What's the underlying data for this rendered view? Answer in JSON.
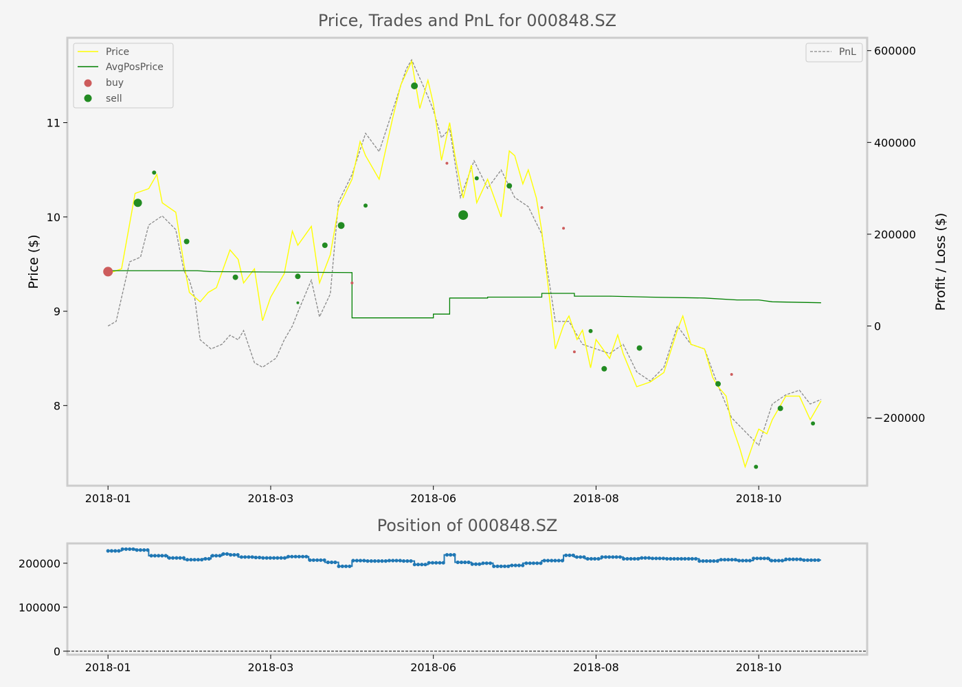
{
  "chart_data": [
    {
      "type": "line",
      "title": "Price, Trades and PnL for 000848.SZ",
      "xlabel": "",
      "ylabel": "Price ($)",
      "y2label": "Profit / Loss ($)",
      "xticks": [
        "2018-01",
        "2018-03",
        "2018-06",
        "2018-08",
        "2018-10"
      ],
      "xtick_values": [
        0,
        60,
        120,
        180,
        240
      ],
      "xlim": [
        -15,
        280
      ],
      "ylim": [
        7.15,
        11.9
      ],
      "yticks": [
        8,
        9,
        10,
        11
      ],
      "y2lim": [
        -348000,
        628000
      ],
      "y2ticks": [
        -200000,
        0,
        200000,
        400000,
        600000
      ],
      "y2tick_labels": [
        "−200000",
        "0",
        "200000",
        "400000",
        "600000"
      ],
      "legend_left": [
        "Price",
        "AvgPosPrice",
        "buy",
        "sell"
      ],
      "legend_right": [
        "PnL"
      ],
      "legend_placement": [
        "top-left",
        "top-right"
      ],
      "colors": {
        "price": "#ffff00",
        "avg": "#008000",
        "pnl": "#888888",
        "buy": "#cd5c5c",
        "sell": "#228b22",
        "axis_frame": "#cccccc"
      },
      "series": [
        {
          "name": "Price",
          "x": [
            0,
            5,
            10,
            15,
            18,
            20,
            25,
            28,
            30,
            34,
            37,
            40,
            45,
            48,
            50,
            54,
            57,
            60,
            65,
            68,
            70,
            75,
            78,
            82,
            85,
            90,
            93,
            95,
            100,
            105,
            108,
            112,
            115,
            118,
            120,
            123,
            126,
            128,
            131,
            134,
            136,
            140,
            145,
            148,
            150,
            153,
            155,
            158,
            160,
            163,
            165,
            168,
            170,
            173,
            175,
            178,
            180,
            185,
            188,
            190,
            195,
            200,
            205,
            210,
            212,
            215,
            220,
            223,
            225,
            228,
            230,
            233,
            235,
            238,
            240,
            243,
            245,
            250,
            255,
            259,
            263
          ],
          "y": [
            9.4,
            9.45,
            10.25,
            10.3,
            10.45,
            10.15,
            10.05,
            9.5,
            9.2,
            9.1,
            9.2,
            9.25,
            9.65,
            9.55,
            9.3,
            9.45,
            8.9,
            9.15,
            9.4,
            9.85,
            9.7,
            9.9,
            9.3,
            9.6,
            10.1,
            10.4,
            10.8,
            10.65,
            10.4,
            11.05,
            11.4,
            11.65,
            11.15,
            11.45,
            11.2,
            10.6,
            11.0,
            10.65,
            10.2,
            10.55,
            10.15,
            10.4,
            10.0,
            10.7,
            10.65,
            10.35,
            10.5,
            10.2,
            9.85,
            9.1,
            8.6,
            8.85,
            8.95,
            8.7,
            8.8,
            8.4,
            8.7,
            8.5,
            8.75,
            8.55,
            8.2,
            8.25,
            8.35,
            8.8,
            8.95,
            8.65,
            8.6,
            8.3,
            8.2,
            8.1,
            7.8,
            7.55,
            7.35,
            7.6,
            7.75,
            7.7,
            7.85,
            8.1,
            8.1,
            7.85,
            8.05
          ]
        },
        {
          "name": "AvgPosPrice",
          "x": [
            0,
            33,
            38,
            90,
            90,
            120,
            120,
            126,
            126,
            140,
            140,
            160,
            160,
            172,
            172,
            185,
            200,
            220,
            232,
            240,
            245,
            263
          ],
          "y": [
            9.43,
            9.43,
            9.42,
            9.41,
            8.93,
            8.93,
            8.97,
            8.97,
            9.14,
            9.14,
            9.15,
            9.15,
            9.19,
            9.19,
            9.16,
            9.16,
            9.15,
            9.14,
            9.12,
            9.12,
            9.1,
            9.09
          ]
        },
        {
          "name": "PnL",
          "x": [
            0,
            3,
            8,
            12,
            15,
            20,
            25,
            28,
            30,
            32,
            34,
            38,
            42,
            45,
            48,
            50,
            54,
            57,
            62,
            65,
            68,
            70,
            75,
            78,
            82,
            85,
            90,
            95,
            100,
            105,
            110,
            112,
            118,
            120,
            123,
            126,
            130,
            135,
            140,
            145,
            150,
            155,
            160,
            165,
            170,
            175,
            180,
            185,
            190,
            195,
            200,
            205,
            210,
            215,
            220,
            225,
            230,
            235,
            240,
            245,
            250,
            255,
            259,
            263
          ],
          "y": [
            0,
            10000,
            140000,
            150000,
            220000,
            240000,
            210000,
            120000,
            100000,
            60000,
            -30000,
            -50000,
            -40000,
            -20000,
            -30000,
            -10000,
            -80000,
            -90000,
            -70000,
            -30000,
            0,
            30000,
            100000,
            20000,
            70000,
            270000,
            330000,
            420000,
            380000,
            470000,
            560000,
            580000,
            500000,
            470000,
            410000,
            430000,
            280000,
            360000,
            300000,
            340000,
            280000,
            260000,
            200000,
            10000,
            10000,
            -40000,
            -50000,
            -60000,
            -40000,
            -100000,
            -120000,
            -90000,
            0,
            -40000,
            -50000,
            -130000,
            -200000,
            -230000,
            -260000,
            -170000,
            -150000,
            -140000,
            -170000,
            -160000
          ]
        }
      ],
      "buy": [
        {
          "x": 0,
          "y": 9.42,
          "size": 7
        },
        {
          "x": 90,
          "y": 9.3,
          "size": 2
        },
        {
          "x": 125,
          "y": 10.57,
          "size": 2
        },
        {
          "x": 160,
          "y": 10.1,
          "size": 2
        },
        {
          "x": 168,
          "y": 9.88,
          "size": 2
        },
        {
          "x": 172,
          "y": 8.57,
          "size": 2
        },
        {
          "x": 230,
          "y": 8.33,
          "size": 2
        }
      ],
      "sell": [
        {
          "x": 11,
          "y": 10.15,
          "size": 6
        },
        {
          "x": 17,
          "y": 10.47,
          "size": 3
        },
        {
          "x": 29,
          "y": 9.74,
          "size": 4
        },
        {
          "x": 47,
          "y": 9.36,
          "size": 4
        },
        {
          "x": 70,
          "y": 9.37,
          "size": 4
        },
        {
          "x": 70,
          "y": 9.09,
          "size": 2
        },
        {
          "x": 80,
          "y": 9.7,
          "size": 4
        },
        {
          "x": 86,
          "y": 9.91,
          "size": 5
        },
        {
          "x": 95,
          "y": 10.12,
          "size": 3
        },
        {
          "x": 113,
          "y": 11.39,
          "size": 5
        },
        {
          "x": 131,
          "y": 10.02,
          "size": 7
        },
        {
          "x": 136,
          "y": 10.41,
          "size": 3
        },
        {
          "x": 148,
          "y": 10.33,
          "size": 4
        },
        {
          "x": 178,
          "y": 8.79,
          "size": 3
        },
        {
          "x": 183,
          "y": 8.39,
          "size": 4
        },
        {
          "x": 196,
          "y": 8.61,
          "size": 4
        },
        {
          "x": 225,
          "y": 8.23,
          "size": 4
        },
        {
          "x": 239,
          "y": 7.35,
          "size": 3
        },
        {
          "x": 248,
          "y": 7.97,
          "size": 4
        },
        {
          "x": 260,
          "y": 7.81,
          "size": 3
        }
      ]
    },
    {
      "type": "line",
      "title": "Position of 000848.SZ",
      "xlabel": "",
      "ylabel": "",
      "xticks": [
        "2018-01",
        "2018-03",
        "2018-06",
        "2018-08",
        "2018-10"
      ],
      "xtick_values": [
        0,
        60,
        120,
        180,
        240
      ],
      "xlim": [
        -15,
        280
      ],
      "ylim": [
        -8000,
        245000
      ],
      "yticks": [
        0,
        100000,
        200000
      ],
      "colors": {
        "line": "#1f77b4",
        "zero_line": "#000000"
      },
      "series": [
        {
          "name": "",
          "x": [
            0,
            5,
            5,
            10,
            10,
            15,
            15,
            22,
            22,
            28,
            28,
            35,
            35,
            38,
            38,
            42,
            42,
            45,
            45,
            48,
            48,
            54,
            54,
            57,
            57,
            66,
            66,
            74,
            74,
            80,
            80,
            85,
            85,
            90,
            90,
            95,
            95,
            103,
            103,
            108,
            108,
            113,
            113,
            118,
            118,
            124,
            124,
            128,
            128,
            134,
            134,
            138,
            138,
            142,
            142,
            148,
            148,
            153,
            153,
            160,
            160,
            168,
            168,
            172,
            172,
            176,
            176,
            182,
            182,
            190,
            190,
            196,
            196,
            200,
            200,
            206,
            206,
            218,
            218,
            225,
            225,
            232,
            232,
            238,
            238,
            244,
            244,
            250,
            250,
            256,
            256,
            263
          ],
          "y": [
            228000,
            228000,
            232000,
            232000,
            230000,
            230000,
            217000,
            217000,
            212000,
            212000,
            208000,
            208000,
            210000,
            210000,
            217000,
            217000,
            221000,
            221000,
            219000,
            219000,
            214000,
            214000,
            213000,
            213000,
            212000,
            212000,
            215000,
            215000,
            207000,
            207000,
            202000,
            202000,
            193000,
            193000,
            206000,
            206000,
            205000,
            205000,
            206000,
            206000,
            205000,
            205000,
            197000,
            197000,
            201000,
            201000,
            219000,
            219000,
            202000,
            202000,
            198000,
            198000,
            200000,
            200000,
            193000,
            193000,
            195000,
            195000,
            200000,
            200000,
            206000,
            206000,
            218000,
            218000,
            214000,
            214000,
            210000,
            210000,
            214000,
            214000,
            210000,
            210000,
            212000,
            212000,
            211000,
            211000,
            210000,
            210000,
            205000,
            205000,
            208000,
            208000,
            206000,
            206000,
            211000,
            211000,
            206000,
            206000,
            209000,
            209000,
            207000,
            207000
          ]
        }
      ],
      "zero_line": 0
    }
  ]
}
